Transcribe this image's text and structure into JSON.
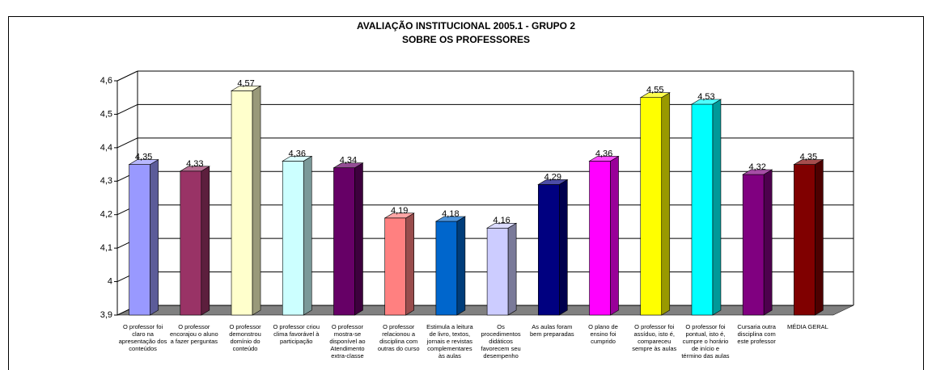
{
  "chart_data": {
    "type": "bar3d",
    "title": [
      "AVALIAÇÃO INSTITUCIONAL 2005.1 - GRUPO 2",
      "SOBRE OS PROFESSORES"
    ],
    "categories": [
      "O professor foi claro na apresentação dos conteúdos",
      "O professor encorajou o aluno a fazer perguntas",
      "O professor demonstrou domínio do conteúdo",
      "O professor criou clima favorável à participação",
      "O professor mostra-se disponível ao Atendimento extra-classe",
      "O professor relacionou a disciplina com outras do curso",
      "Estimula a leitura de livro, textos, jornais e revistas complementares às aulas",
      "Os procedimentos didáticos favorecem seu desempenho",
      "As aulas foram bem preparadas",
      "O plano de ensino foi cumprido",
      "O professor foi assíduo, isto é, compareceu sempre às aulas",
      "O professor foi pontual, isto é, cumpre o horário de início e término das aulas",
      "Cursaria outra disciplina com este professor",
      "MÉDIA GERAL"
    ],
    "values": [
      4.35,
      4.33,
      4.57,
      4.36,
      4.34,
      4.19,
      4.18,
      4.16,
      4.29,
      4.36,
      4.55,
      4.53,
      4.32,
      4.35
    ],
    "value_labels": [
      "4,35",
      "4,33",
      "4,57",
      "4,36",
      "4,34",
      "4,19",
      "4,18",
      "4,16",
      "4,29",
      "4,36",
      "4,55",
      "4,53",
      "4,32",
      "4,35"
    ],
    "colors": [
      "#9999ff",
      "#993366",
      "#ffffcc",
      "#ccffff",
      "#660066",
      "#ff8080",
      "#0066cc",
      "#ccccff",
      "#000080",
      "#ff00ff",
      "#ffff00",
      "#00ffff",
      "#800080",
      "#800000"
    ],
    "ylim": [
      3.9,
      4.6
    ],
    "yticks": [
      {
        "value": 3.9,
        "label": "3,9"
      },
      4,
      {
        "value": 4.1,
        "label": "4,1"
      },
      {
        "value": 4.2,
        "label": "4,2"
      },
      {
        "value": 4.3,
        "label": "4,3"
      },
      {
        "value": 4.4,
        "label": "4,4"
      },
      {
        "value": 4.5,
        "label": "4,5"
      },
      {
        "value": 4.6,
        "label": "4,6"
      }
    ],
    "grid": true
  }
}
